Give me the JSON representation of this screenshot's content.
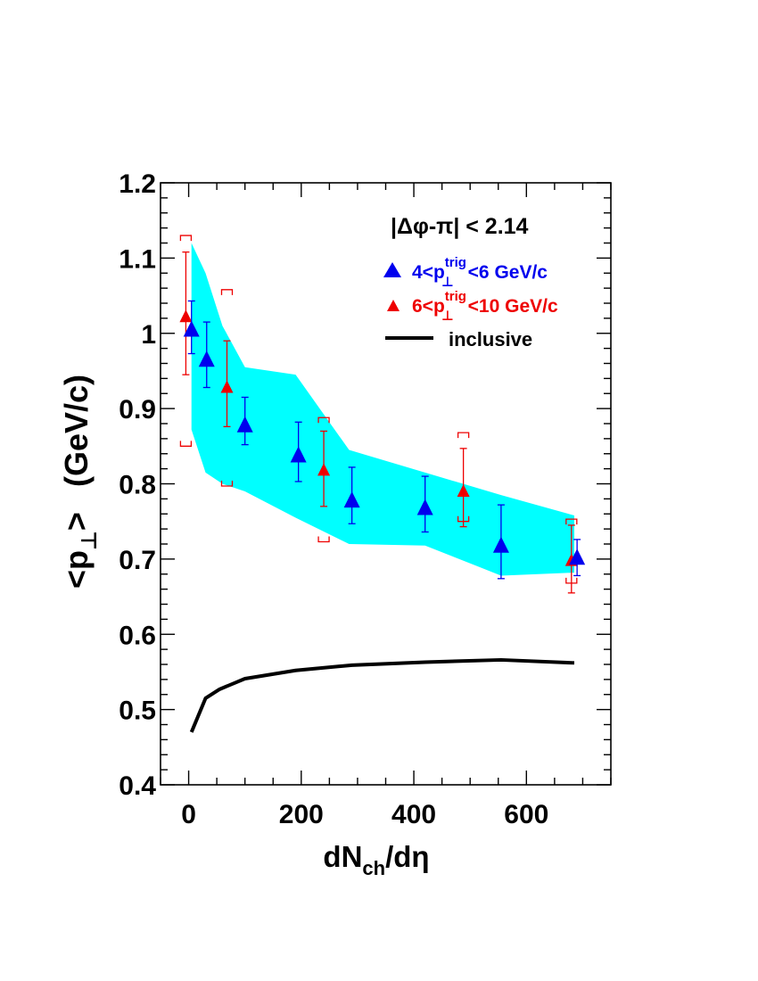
{
  "chart_data": {
    "type": "scatter",
    "xlabel": {
      "main": "dN",
      "sub": "ch",
      "tail": "/dη"
    },
    "ylabel": {
      "open": "<p",
      "sub": "⊥",
      "close": ">",
      "units": "(GeV/c)"
    },
    "xlim": [
      -50,
      750
    ],
    "ylim": [
      0.4,
      1.2
    ],
    "x_ticks": [
      0,
      200,
      400,
      600
    ],
    "x_tick_labels": [
      "0",
      "200",
      "400",
      "600"
    ],
    "y_ticks": [
      0.4,
      0.5,
      0.6,
      0.7,
      0.8,
      0.9,
      1.0,
      1.1,
      1.2
    ],
    "y_tick_labels": [
      "0.4",
      "0.5",
      "0.6",
      "0.7",
      "0.8",
      "0.9",
      "1",
      "1.1",
      "1.2"
    ],
    "legend": {
      "header": "|Δφ-π| < 2.14",
      "placement": "top-right",
      "entries": [
        {
          "pre": "4<p",
          "sup": "trig",
          "sub": "⊥",
          "post": "<6 GeV/c",
          "color": "#0000ee"
        },
        {
          "pre": "6<p",
          "sup": "trig",
          "sub": "⊥",
          "post": "<10 GeV/c",
          "color": "#ee0000"
        },
        {
          "label": "inclusive",
          "color": "#000000"
        }
      ]
    },
    "series": [
      {
        "name": "4<p⊥trig<6 GeV/c",
        "color": "#0000ee",
        "marker": "triangle-large",
        "points": [
          {
            "x": 5,
            "y": 1.005,
            "err_low": 0.973,
            "err_high": 1.043
          },
          {
            "x": 32,
            "y": 0.965,
            "err_low": 0.928,
            "err_high": 1.015
          },
          {
            "x": 100,
            "y": 0.878,
            "err_low": 0.852,
            "err_high": 0.915
          },
          {
            "x": 195,
            "y": 0.838,
            "err_low": 0.803,
            "err_high": 0.882
          },
          {
            "x": 290,
            "y": 0.778,
            "err_low": 0.747,
            "err_high": 0.822
          },
          {
            "x": 420,
            "y": 0.768,
            "err_low": 0.736,
            "err_high": 0.81
          },
          {
            "x": 555,
            "y": 0.718,
            "err_low": 0.674,
            "err_high": 0.772
          },
          {
            "x": 690,
            "y": 0.702,
            "err_low": 0.678,
            "err_high": 0.726
          }
        ],
        "syst_band": {
          "color": "#00ffff",
          "upper": [
            [
              5,
              1.12
            ],
            [
              30,
              1.08
            ],
            [
              60,
              1.01
            ],
            [
              100,
              0.955
            ],
            [
              190,
              0.945
            ],
            [
              285,
              0.845
            ],
            [
              420,
              0.815
            ],
            [
              555,
              0.785
            ],
            [
              685,
              0.758
            ]
          ],
          "lower": [
            [
              5,
              0.872
            ],
            [
              30,
              0.815
            ],
            [
              60,
              0.8
            ],
            [
              100,
              0.79
            ],
            [
              190,
              0.755
            ],
            [
              285,
              0.72
            ],
            [
              420,
              0.718
            ],
            [
              555,
              0.678
            ],
            [
              685,
              0.682
            ]
          ]
        }
      },
      {
        "name": "6<p⊥trig<10 GeV/c",
        "color": "#ee0000",
        "marker": "triangle-small",
        "points": [
          {
            "x": -5,
            "y": 1.022,
            "err_low": 0.945,
            "err_high": 1.108,
            "syst_low": 0.85,
            "syst_high": 1.13
          },
          {
            "x": 68,
            "y": 0.928,
            "err_low": 0.876,
            "err_high": 0.99,
            "syst_low": 0.797,
            "syst_high": 1.058
          },
          {
            "x": 240,
            "y": 0.818,
            "err_low": 0.77,
            "err_high": 0.87,
            "syst_low": 0.723,
            "syst_high": 0.888
          },
          {
            "x": 488,
            "y": 0.79,
            "err_low": 0.743,
            "err_high": 0.847,
            "syst_low": 0.75,
            "syst_high": 0.868
          },
          {
            "x": 680,
            "y": 0.698,
            "err_low": 0.655,
            "err_high": 0.745,
            "syst_low": 0.668,
            "syst_high": 0.753
          }
        ]
      },
      {
        "name": "inclusive",
        "color": "#000000",
        "marker": "line",
        "points": [
          {
            "x": 5,
            "y": 0.47
          },
          {
            "x": 30,
            "y": 0.515
          },
          {
            "x": 55,
            "y": 0.527
          },
          {
            "x": 100,
            "y": 0.541
          },
          {
            "x": 190,
            "y": 0.552
          },
          {
            "x": 290,
            "y": 0.559
          },
          {
            "x": 420,
            "y": 0.563
          },
          {
            "x": 555,
            "y": 0.566
          },
          {
            "x": 685,
            "y": 0.562
          }
        ]
      }
    ]
  }
}
